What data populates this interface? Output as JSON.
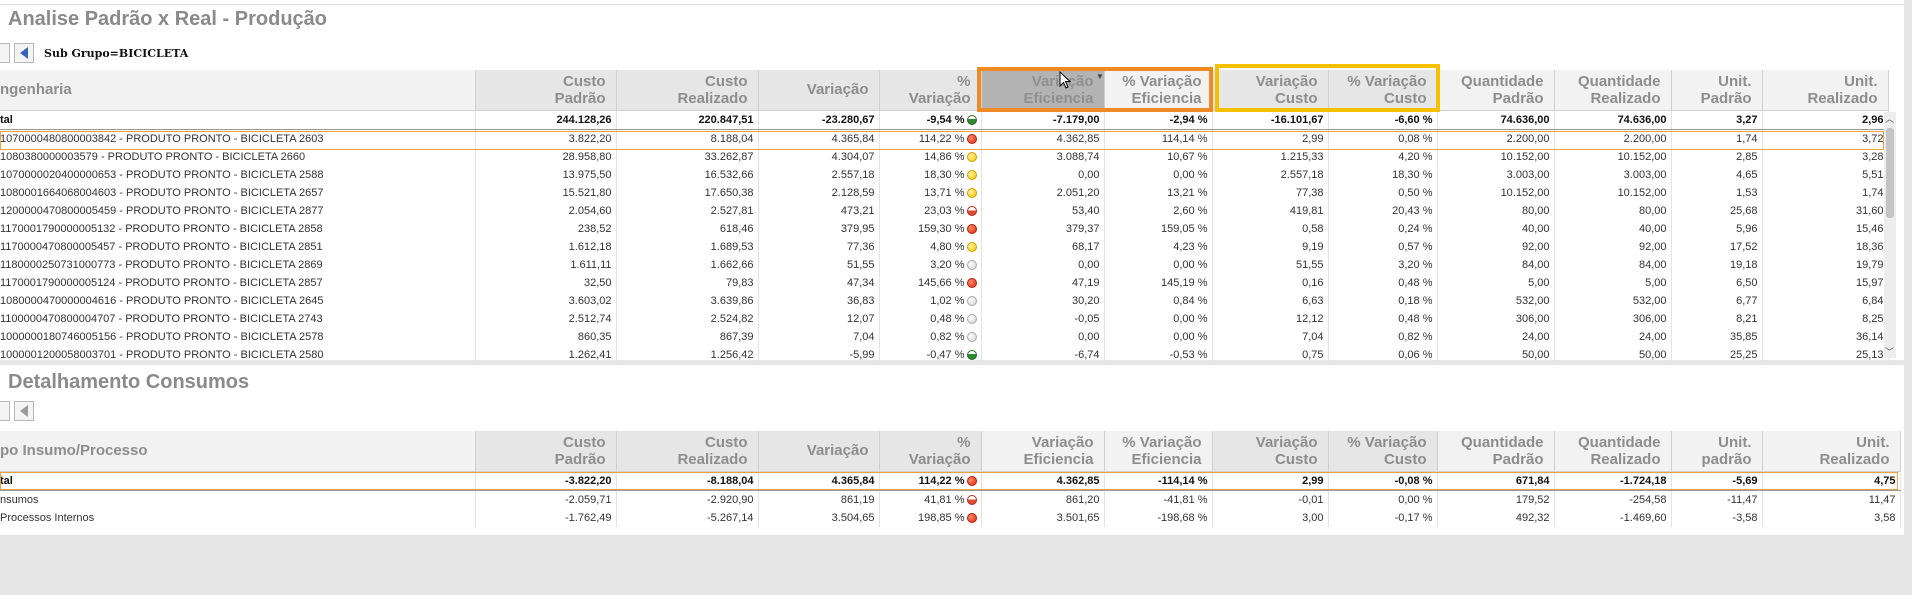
{
  "top": {
    "title": "Analise Padrão x Real - Produção",
    "filter_label": "Sub Grupo=BICICLETA",
    "columns": [
      "ngenharia",
      "Custo Padrão",
      "Custo Realizado",
      "Variação",
      "% Variação",
      "Variação Eficiencia",
      "% Variação Eficiencia",
      "Variação Custo",
      "% Variação Custo",
      "Quantidade Padrão",
      "Quantidade Realizado",
      "Unit. Padrão",
      "Unit. Realizado"
    ],
    "total": {
      "label": "tal",
      "cells": [
        "244.128,26",
        "220.847,51",
        "-23.280,67",
        "-9,54 %",
        "-7.179,00",
        "-2,94 %",
        "-16.101,67",
        "-6,60 %",
        "74.636,00",
        "74.636,00",
        "3,27",
        "2,96"
      ],
      "indicator": "green"
    },
    "rows": [
      {
        "label": "1070000480800003842 - PRODUTO PRONTO - BICICLETA 2603",
        "cells": [
          "3.822,20",
          "8.188,04",
          "4.365,84",
          "114,22 %",
          "4.362,85",
          "114,14 %",
          "2,99",
          "0,08 %",
          "2.200,00",
          "2.200,00",
          "1,74",
          "3,72"
        ],
        "indicator": "red"
      },
      {
        "label": "1080380000003579 - PRODUTO PRONTO - BICICLETA 2660",
        "cells": [
          "28.958,80",
          "33.262,87",
          "4.304,07",
          "14,86 %",
          "3.088,74",
          "10,67 %",
          "1.215,33",
          "4,20 %",
          "10.152,00",
          "10.152,00",
          "2,85",
          "3,28"
        ],
        "indicator": "yellow"
      },
      {
        "label": "1070000020400000653 - PRODUTO PRONTO - BICICLETA 2588",
        "cells": [
          "13.975,50",
          "16.532,66",
          "2.557,18",
          "18,30 %",
          "0,00",
          "0,00 %",
          "2.557,18",
          "18,30 %",
          "3.003,00",
          "3.003,00",
          "4,65",
          "5,51"
        ],
        "indicator": "yellow"
      },
      {
        "label": "1080001664068004603 - PRODUTO PRONTO - BICICLETA 2657",
        "cells": [
          "15.521,80",
          "17.650,38",
          "2.128,59",
          "13,71 %",
          "2.051,20",
          "13,21 %",
          "77,38",
          "0,50 %",
          "10.152,00",
          "10.152,00",
          "1,53",
          "1,74"
        ],
        "indicator": "yellow"
      },
      {
        "label": "1200000470800005459 - PRODUTO PRONTO - BICICLETA 2877",
        "cells": [
          "2.054,60",
          "2.527,81",
          "473,21",
          "23,03 %",
          "53,40",
          "2,60 %",
          "419,81",
          "20,43 %",
          "80,00",
          "80,00",
          "25,68",
          "31,60"
        ],
        "indicator": "redgray"
      },
      {
        "label": "1170001790000005132 - PRODUTO PRONTO - BICICLETA 2858",
        "cells": [
          "238,52",
          "618,46",
          "379,95",
          "159,30 %",
          "379,37",
          "159,05 %",
          "0,58",
          "0,24 %",
          "40,00",
          "40,00",
          "5,96",
          "15,46"
        ],
        "indicator": "red"
      },
      {
        "label": "1170000470800005457 - PRODUTO PRONTO - BICICLETA 2851",
        "cells": [
          "1.612,18",
          "1.689,53",
          "77,36",
          "4,80 %",
          "68,17",
          "4,23 %",
          "9,19",
          "0,57 %",
          "92,00",
          "92,00",
          "17,52",
          "18,36"
        ],
        "indicator": "yellow"
      },
      {
        "label": "1180000250731000773 - PRODUTO PRONTO - BICICLETA 2869",
        "cells": [
          "1.611,11",
          "1.662,66",
          "51,55",
          "3,20 %",
          "0,00",
          "0,00 %",
          "51,55",
          "3,20 %",
          "84,00",
          "84,00",
          "19,18",
          "19,79"
        ],
        "indicator": "gray"
      },
      {
        "label": "1170001790000005124 - PRODUTO PRONTO - BICICLETA 2857",
        "cells": [
          "32,50",
          "79,83",
          "47,34",
          "145,66 %",
          "47,19",
          "145,19 %",
          "0,16",
          "0,48 %",
          "5,00",
          "5,00",
          "6,50",
          "15,97"
        ],
        "indicator": "red"
      },
      {
        "label": "1080000470000004616 - PRODUTO PRONTO - BICICLETA 2645",
        "cells": [
          "3.603,02",
          "3.639,86",
          "36,83",
          "1,02 %",
          "30,20",
          "0,84 %",
          "6,63",
          "0,18 %",
          "532,00",
          "532,00",
          "6,77",
          "6,84"
        ],
        "indicator": "gray"
      },
      {
        "label": "1100000470800004707 - PRODUTO PRONTO - BICICLETA 2743",
        "cells": [
          "2.512,74",
          "2.524,82",
          "12,07",
          "0,48 %",
          "-0,05",
          "0,00 %",
          "12,12",
          "0,48 %",
          "306,00",
          "306,00",
          "8,21",
          "8,25"
        ],
        "indicator": "gray"
      },
      {
        "label": "1000000180746005156 - PRODUTO PRONTO - BICICLETA 2578",
        "cells": [
          "860,35",
          "867,39",
          "7,04",
          "0,82 %",
          "0,00",
          "0,00 %",
          "7,04",
          "0,82 %",
          "24,00",
          "24,00",
          "35,85",
          "36,14"
        ],
        "indicator": "gray"
      },
      {
        "label": "1000001200058003701 - PRODUTO PRONTO - BICICLETA 2580",
        "cells": [
          "1.262,41",
          "1.256,42",
          "-5,99",
          "-0,47 %",
          "-6,74",
          "-0,53 %",
          "0,75",
          "0,06 %",
          "50,00",
          "50,00",
          "25,25",
          "25,13"
        ],
        "indicator": "green"
      }
    ]
  },
  "bottom": {
    "title": "Detalhamento Consumos",
    "columns": [
      "po Insumo/Processo",
      "Custo Padrão",
      "Custo Realizado",
      "Variação",
      "% Variação",
      "Variação Eficiencia",
      "% Variação Eficiencia",
      "Variação Custo",
      "% Variação Custo",
      "Quantidade Padrão",
      "Quantidade Realizado",
      "Unit. padrão",
      "Unit. Realizado"
    ],
    "total": {
      "label": "tal",
      "cells": [
        "-3.822,20",
        "-8.188,04",
        "4.365,84",
        "114,22 %",
        "4.362,85",
        "-114,14 %",
        "2,99",
        "-0,08 %",
        "671,84",
        "-1.724,18",
        "-5,69",
        "4,75"
      ],
      "indicator": "red"
    },
    "rows": [
      {
        "label": "nsumos",
        "cells": [
          "-2.059,71",
          "-2.920,90",
          "861,19",
          "41,81 %",
          "861,20",
          "-41,81 %",
          "-0,01",
          "0,00 %",
          "179,52",
          "-254,58",
          "-11,47",
          "11,47"
        ],
        "indicator": "redgray"
      },
      {
        "label": "Processos Internos",
        "cells": [
          "-1.762,49",
          "-5.267,14",
          "3.504,65",
          "198,85 %",
          "3.501,65",
          "-198,68 %",
          "3,00",
          "-0,17 %",
          "492,32",
          "-1.469,60",
          "-3,58",
          "3,58"
        ],
        "indicator": "red"
      }
    ]
  },
  "colors": {
    "orange_frame": "#f08a24",
    "yellow_frame": "#f5c000",
    "row_highlight": "#f0a040"
  }
}
